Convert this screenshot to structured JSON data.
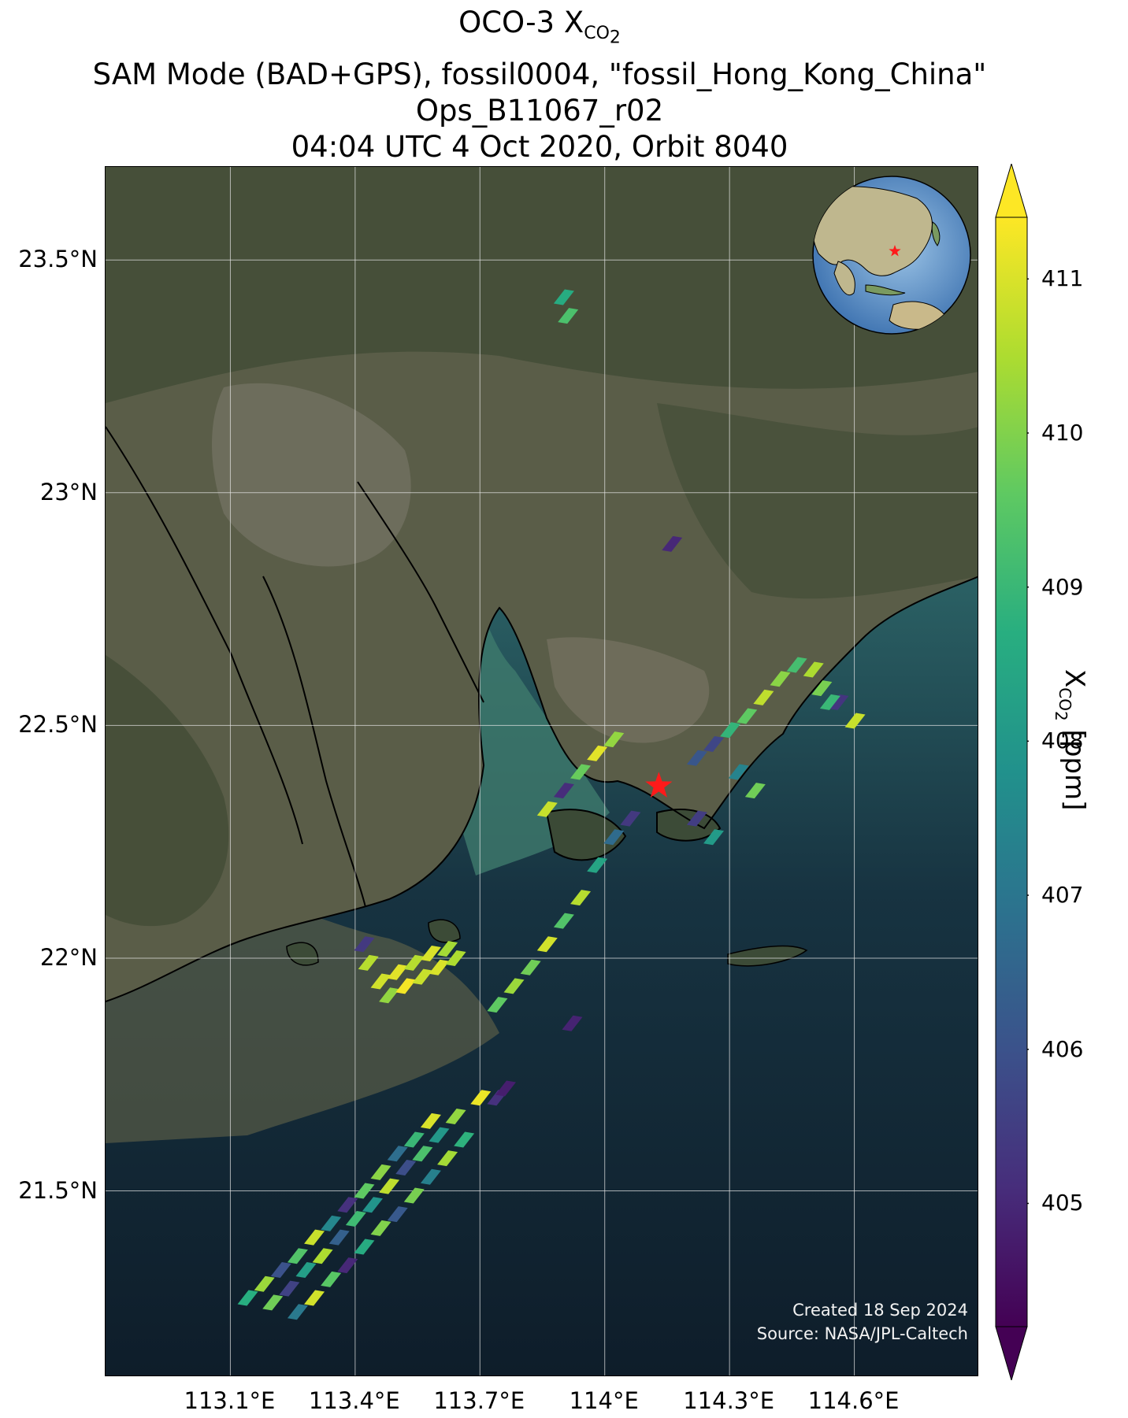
{
  "title": {
    "line1_prefix": "OCO-3 X",
    "line1_sub": "CO",
    "line1_subsub": "2",
    "line2": "SAM Mode (BAD+GPS), fossil0004, \"fossil_Hong_Kong_China\"",
    "line3": "Ops_B11067_r02",
    "line4": "04:04 UTC 4 Oct 2020, Orbit 8040"
  },
  "map": {
    "lon_range": [
      112.8,
      114.9
    ],
    "lat_range": [
      21.1,
      23.7
    ],
    "lat_ticks": [
      {
        "value": 23.5,
        "label": "23.5°N"
      },
      {
        "value": 23.0,
        "label": "23°N"
      },
      {
        "value": 22.5,
        "label": "22.5°N"
      },
      {
        "value": 22.0,
        "label": "22°N"
      },
      {
        "value": 21.5,
        "label": "21.5°N"
      }
    ],
    "lon_ticks": [
      {
        "value": 113.1,
        "label": "113.1°E"
      },
      {
        "value": 113.4,
        "label": "113.4°E"
      },
      {
        "value": 113.7,
        "label": "113.7°E"
      },
      {
        "value": 114.0,
        "label": "114°E"
      },
      {
        "value": 114.3,
        "label": "114.3°E"
      },
      {
        "value": 114.6,
        "label": "114.6°E"
      }
    ],
    "grid": true,
    "target": {
      "lon": 114.13,
      "lat": 22.37,
      "marker": "red-star"
    },
    "inset": "orthographic-globe-top-right"
  },
  "credits": {
    "created": "Created 18 Sep 2024",
    "source": "Source: NASA/JPL-Caltech"
  },
  "colorbar": {
    "label_prefix": "X",
    "label_sub": "CO",
    "label_subsub": "2",
    "label_suffix": " [ppm]",
    "vmin": 404.2,
    "vmax": 411.4,
    "ticks": [
      "405",
      "406",
      "407",
      "408",
      "409",
      "410",
      "411"
    ],
    "colormap": "viridis",
    "extend": "both"
  },
  "chart_data": {
    "type": "scatter",
    "xlabel": "",
    "ylabel": "",
    "xlim": [
      112.8,
      114.9
    ],
    "ylim": [
      21.1,
      23.7
    ],
    "note_units": "ppm",
    "soundings": [
      [
        113.14,
        21.27,
        408.7
      ],
      [
        113.18,
        21.3,
        410.3
      ],
      [
        113.22,
        21.33,
        406.0
      ],
      [
        113.26,
        21.36,
        409.4
      ],
      [
        113.3,
        21.4,
        410.8
      ],
      [
        113.34,
        21.43,
        407.5
      ],
      [
        113.38,
        21.47,
        405.2
      ],
      [
        113.42,
        21.5,
        409.6
      ],
      [
        113.46,
        21.54,
        410.1
      ],
      [
        113.5,
        21.58,
        406.8
      ],
      [
        113.54,
        21.61,
        409.0
      ],
      [
        113.58,
        21.65,
        411.0
      ],
      [
        113.2,
        21.26,
        409.8
      ],
      [
        113.24,
        21.29,
        405.6
      ],
      [
        113.28,
        21.33,
        408.2
      ],
      [
        113.32,
        21.36,
        410.5
      ],
      [
        113.36,
        21.4,
        406.4
      ],
      [
        113.4,
        21.44,
        409.1
      ],
      [
        113.44,
        21.47,
        407.9
      ],
      [
        113.48,
        21.51,
        410.7
      ],
      [
        113.52,
        21.55,
        405.9
      ],
      [
        113.56,
        21.58,
        409.3
      ],
      [
        113.6,
        21.62,
        408.0
      ],
      [
        113.64,
        21.66,
        410.2
      ],
      [
        113.26,
        21.24,
        407.1
      ],
      [
        113.3,
        21.27,
        410.9
      ],
      [
        113.34,
        21.31,
        409.5
      ],
      [
        113.38,
        21.34,
        405.0
      ],
      [
        113.42,
        21.38,
        408.6
      ],
      [
        113.46,
        21.42,
        410.0
      ],
      [
        113.5,
        21.45,
        406.2
      ],
      [
        113.54,
        21.49,
        409.9
      ],
      [
        113.58,
        21.53,
        407.3
      ],
      [
        113.62,
        21.57,
        410.4
      ],
      [
        113.66,
        21.61,
        408.8
      ],
      [
        113.7,
        21.7,
        411.2
      ],
      [
        113.46,
        21.95,
        410.9
      ],
      [
        113.5,
        21.97,
        411.1
      ],
      [
        113.54,
        21.99,
        410.6
      ],
      [
        113.58,
        22.01,
        411.0
      ],
      [
        113.62,
        22.02,
        410.4
      ],
      [
        113.48,
        21.92,
        410.2
      ],
      [
        113.52,
        21.94,
        411.3
      ],
      [
        113.56,
        21.96,
        410.8
      ],
      [
        113.6,
        21.98,
        411.0
      ],
      [
        113.64,
        22.0,
        410.5
      ],
      [
        113.74,
        21.9,
        409.6
      ],
      [
        113.78,
        21.94,
        410.3
      ],
      [
        113.82,
        21.98,
        409.8
      ],
      [
        113.86,
        22.03,
        410.9
      ],
      [
        113.9,
        22.08,
        409.4
      ],
      [
        113.94,
        22.13,
        410.6
      ],
      [
        113.98,
        22.2,
        408.4
      ],
      [
        114.02,
        22.26,
        406.7
      ],
      [
        114.06,
        22.3,
        405.4
      ],
      [
        113.86,
        22.32,
        410.8
      ],
      [
        113.9,
        22.36,
        405.1
      ],
      [
        113.94,
        22.4,
        409.7
      ],
      [
        113.98,
        22.44,
        411.1
      ],
      [
        114.02,
        22.47,
        410.2
      ],
      [
        114.22,
        22.43,
        406.1
      ],
      [
        114.26,
        22.46,
        405.7
      ],
      [
        114.3,
        22.49,
        408.9
      ],
      [
        114.34,
        22.52,
        409.6
      ],
      [
        114.38,
        22.56,
        410.7
      ],
      [
        114.42,
        22.6,
        410.1
      ],
      [
        114.46,
        22.63,
        409.2
      ],
      [
        114.5,
        22.62,
        410.5
      ],
      [
        114.52,
        22.58,
        409.9
      ],
      [
        114.56,
        22.55,
        405.3
      ],
      [
        114.6,
        22.51,
        410.8
      ],
      [
        114.54,
        22.55,
        409.0
      ],
      [
        114.32,
        22.4,
        407.4
      ],
      [
        114.36,
        22.36,
        409.8
      ],
      [
        114.22,
        22.3,
        405.5
      ],
      [
        114.26,
        22.26,
        408.1
      ],
      [
        113.9,
        23.42,
        408.6
      ],
      [
        113.91,
        23.38,
        409.3
      ],
      [
        114.16,
        22.89,
        405.0
      ],
      [
        113.92,
        21.86,
        404.9
      ],
      [
        113.74,
        21.7,
        405.2
      ],
      [
        113.76,
        21.72,
        404.8
      ],
      [
        113.43,
        21.99,
        410.6
      ],
      [
        113.42,
        22.03,
        405.4
      ]
    ]
  }
}
